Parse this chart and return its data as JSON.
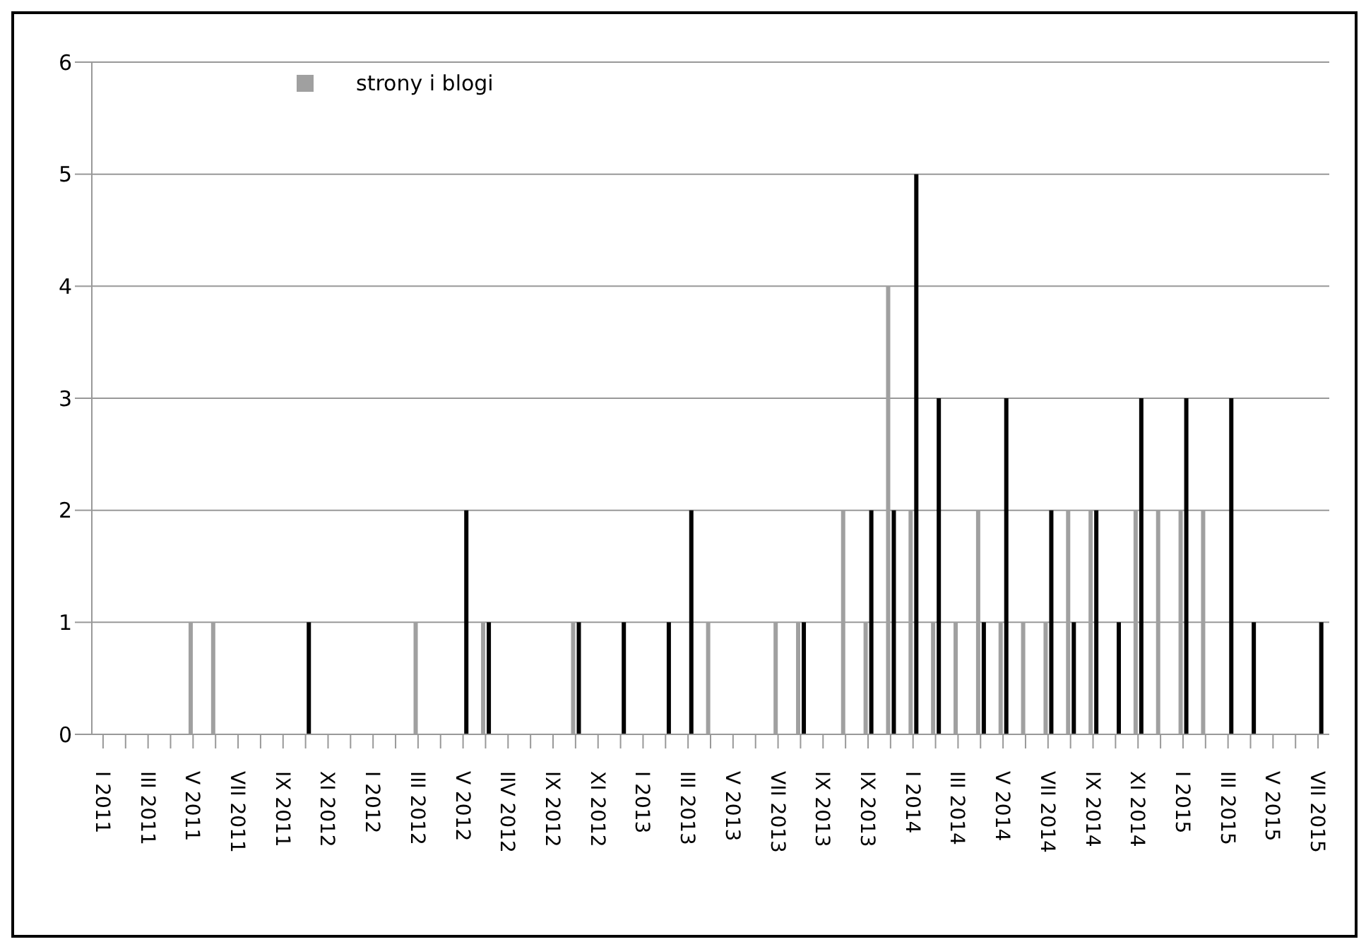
{
  "chart_data": {
    "type": "bar",
    "categories": [
      "I 2011",
      null,
      "III 2011",
      null,
      "V 2011",
      null,
      "VII 2011",
      null,
      "IX 2011",
      null,
      "XI 2012",
      null,
      "I 2012",
      null,
      "III 2012",
      null,
      "V 2012",
      null,
      "IIV 2012",
      null,
      "IX 2012",
      null,
      "XI 2012",
      null,
      "I 2013",
      null,
      "III 2013",
      null,
      "V 2013",
      null,
      "VII 2013",
      null,
      "IX 2013",
      null,
      "IX 2013",
      null,
      "I 2014",
      null,
      "III 2014",
      null,
      "V 2014",
      null,
      "VII 2014",
      null,
      "IX 2014",
      null,
      "XI 2014",
      null,
      "I 2015",
      null,
      "III 2015",
      null,
      "V 2015",
      null,
      "VII 2015"
    ],
    "series": [
      {
        "name": "strony i blogi",
        "color": "#a0a0a0",
        "values": [
          0,
          0,
          0,
          0,
          1,
          1,
          0,
          0,
          0,
          0,
          0,
          0,
          0,
          0,
          1,
          0,
          0,
          1,
          0,
          0,
          0,
          1,
          0,
          0,
          0,
          0,
          0,
          1,
          0,
          0,
          1,
          1,
          0,
          2,
          1,
          4,
          2,
          1,
          1,
          2,
          1,
          1,
          1,
          2,
          2,
          0,
          2,
          2,
          2,
          2,
          0,
          0,
          0,
          0,
          0
        ]
      },
      {
        "color": "#000000",
        "values": [
          0,
          0,
          0,
          0,
          0,
          0,
          0,
          0,
          0,
          1,
          0,
          0,
          0,
          0,
          0,
          0,
          2,
          1,
          0,
          0,
          0,
          1,
          0,
          1,
          0,
          1,
          2,
          0,
          0,
          0,
          0,
          1,
          0,
          0,
          2,
          2,
          5,
          3,
          0,
          1,
          3,
          0,
          2,
          1,
          2,
          1,
          3,
          0,
          3,
          0,
          3,
          1,
          0,
          0,
          1
        ]
      }
    ],
    "ylim": [
      0,
      6
    ],
    "yticks": [
      0,
      1,
      2,
      3,
      4,
      5,
      6
    ],
    "grid": "y",
    "legend": "top left"
  }
}
